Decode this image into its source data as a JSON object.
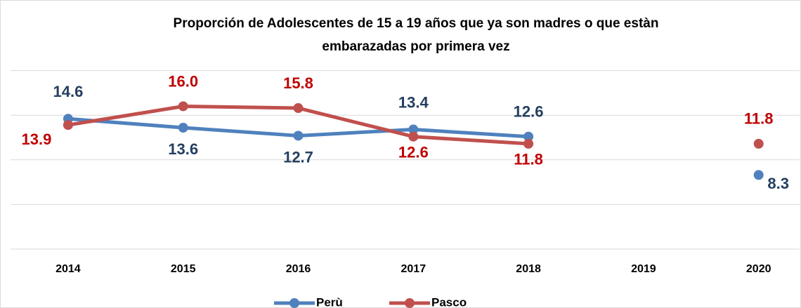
{
  "chart_data": {
    "type": "line",
    "title": [
      "Proporción de Adolescentes de 15 a 19 años que ya son madres o que estàn",
      "embarazadas por primera vez"
    ],
    "categories": [
      "2014",
      "2015",
      "2016",
      "2017",
      "2018",
      "2019",
      "2020"
    ],
    "series": [
      {
        "name": "Perù",
        "color": "#4f81bd",
        "label_color": "#243f60",
        "values": [
          14.6,
          13.6,
          12.7,
          13.4,
          12.6,
          null,
          8.3
        ],
        "value_labels": [
          "14.6",
          "13.6",
          "12.7",
          "13.4",
          "12.6",
          null,
          "8.3"
        ]
      },
      {
        "name": "Pasco",
        "color": "#c0504d",
        "label_color": "#c00000",
        "values": [
          13.9,
          16.0,
          15.8,
          12.6,
          11.8,
          null,
          11.8
        ],
        "value_labels": [
          "13.9",
          "16.0",
          "15.8",
          "12.6",
          "11.8",
          null,
          "11.8"
        ]
      }
    ],
    "ylim": [
      0,
      25
    ],
    "yticks": [
      0,
      5,
      10,
      15,
      20
    ],
    "grid": true,
    "legend": "bottom"
  }
}
